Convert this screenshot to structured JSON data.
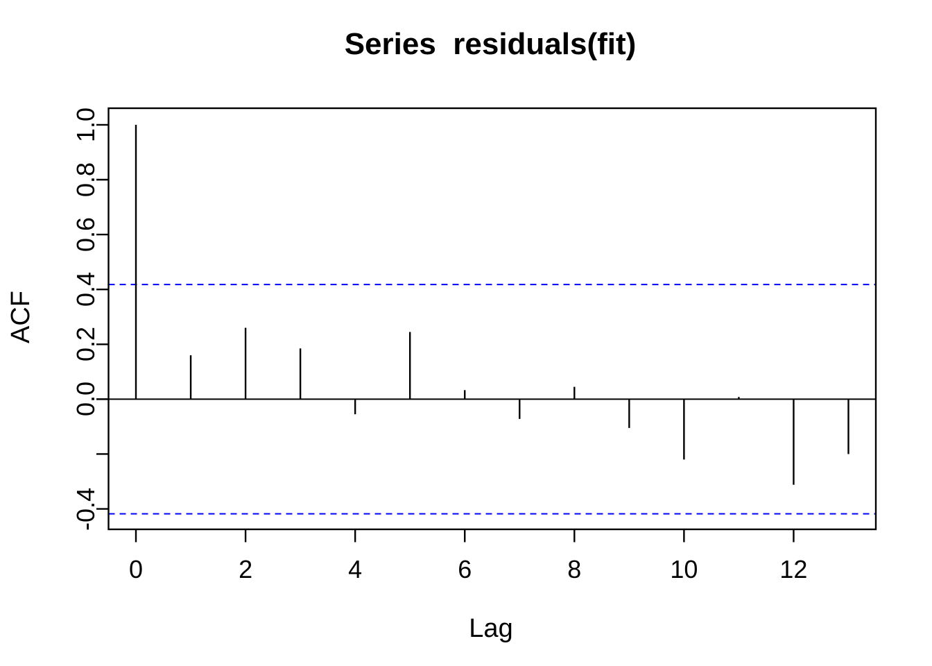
{
  "chart_data": {
    "type": "bar",
    "title": "Series  residuals(fit)",
    "xlabel": "Lag",
    "ylabel": "ACF",
    "x": [
      0,
      1,
      2,
      3,
      4,
      5,
      6,
      7,
      8,
      9,
      10,
      11,
      12,
      13
    ],
    "values": [
      1.0,
      0.16,
      0.26,
      0.185,
      -0.055,
      0.245,
      0.033,
      -0.072,
      0.045,
      -0.105,
      -0.22,
      0.008,
      -0.312,
      -0.2
    ],
    "conf_lines": [
      0.418,
      -0.418
    ],
    "xlim": [
      -0.5,
      13.5
    ],
    "ylim": [
      -0.4745,
      1.0605
    ],
    "x_ticks": [
      0,
      2,
      4,
      6,
      8,
      10,
      12
    ],
    "x_tick_labels": [
      "0",
      "2",
      "4",
      "6",
      "8",
      "10",
      "12"
    ],
    "y_ticks": [
      1.0,
      0.8,
      0.6,
      0.4,
      0.2,
      0.0,
      -0.2,
      -0.4
    ],
    "y_tick_labels": [
      "1.0",
      "0.8",
      "0.6",
      "0.4",
      "0.2",
      "0.0",
      "",
      "-0.4"
    ],
    "grid": false,
    "legend": null,
    "colors": {
      "bar": "#000000",
      "axis": "#000000",
      "conf_line": "#0000ff",
      "background": "#ffffff",
      "text": "#000000"
    }
  }
}
